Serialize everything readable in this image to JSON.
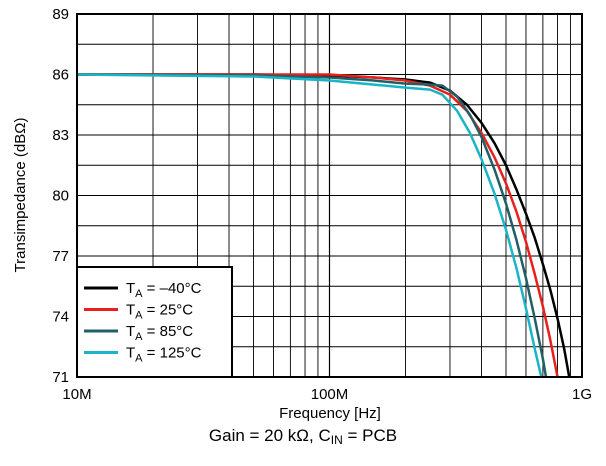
{
  "chart_data": {
    "type": "line",
    "xlabel": "Frequency [Hz]",
    "ylabel": "Transimpedance (dBΩ)",
    "xscale": "log",
    "xlim": [
      10000000,
      1000000000
    ],
    "ylim": [
      71,
      89
    ],
    "x_ticks": [
      {
        "value": 10000000,
        "label": "10M"
      },
      {
        "value": 100000000,
        "label": "100M"
      },
      {
        "value": 1000000000,
        "label": "1G"
      }
    ],
    "y_ticks": [
      71,
      74,
      77,
      80,
      83,
      86,
      89
    ],
    "grid": true,
    "legend_position": "bottom-left",
    "series": [
      {
        "name_main": "T",
        "name_sub": "A",
        "name_rest": " = –40°C",
        "color": "#000000",
        "points": [
          [
            10000000,
            86.0
          ],
          [
            50000000,
            86.0
          ],
          [
            100000000,
            85.95
          ],
          [
            150000000,
            85.85
          ],
          [
            200000000,
            85.75
          ],
          [
            250000000,
            85.6
          ],
          [
            300000000,
            85.2
          ],
          [
            350000000,
            84.5
          ],
          [
            400000000,
            83.6
          ],
          [
            450000000,
            82.6
          ],
          [
            500000000,
            81.5
          ],
          [
            550000000,
            80.3
          ],
          [
            600000000,
            79.1
          ],
          [
            650000000,
            77.9
          ],
          [
            700000000,
            76.6
          ],
          [
            750000000,
            75.3
          ],
          [
            800000000,
            73.9
          ],
          [
            850000000,
            72.4
          ],
          [
            890000000,
            71.0
          ]
        ]
      },
      {
        "name_main": "T",
        "name_sub": "A",
        "name_rest": " = 25°C",
        "color": "#e8201d",
        "points": [
          [
            10000000,
            86.0
          ],
          [
            50000000,
            86.0
          ],
          [
            100000000,
            86.0
          ],
          [
            150000000,
            85.85
          ],
          [
            200000000,
            85.7
          ],
          [
            250000000,
            85.45
          ],
          [
            300000000,
            85.0
          ],
          [
            350000000,
            84.2
          ],
          [
            400000000,
            83.1
          ],
          [
            450000000,
            81.9
          ],
          [
            500000000,
            80.6
          ],
          [
            550000000,
            79.2
          ],
          [
            600000000,
            77.7
          ],
          [
            650000000,
            76.1
          ],
          [
            700000000,
            74.5
          ],
          [
            750000000,
            72.8
          ],
          [
            800000000,
            71.0
          ]
        ]
      },
      {
        "name_main": "T",
        "name_sub": "A",
        "name_rest": " = 85°C",
        "color": "#1f5f66",
        "points": [
          [
            10000000,
            86.0
          ],
          [
            50000000,
            85.95
          ],
          [
            100000000,
            85.85
          ],
          [
            150000000,
            85.7
          ],
          [
            200000000,
            85.55
          ],
          [
            250000000,
            85.5
          ],
          [
            280000000,
            85.45
          ],
          [
            320000000,
            84.9
          ],
          [
            360000000,
            84.0
          ],
          [
            400000000,
            82.9
          ],
          [
            450000000,
            81.3
          ],
          [
            500000000,
            79.6
          ],
          [
            550000000,
            77.8
          ],
          [
            600000000,
            75.9
          ],
          [
            650000000,
            73.9
          ],
          [
            700000000,
            71.9
          ],
          [
            720000000,
            71.0
          ]
        ]
      },
      {
        "name_main": "T",
        "name_sub": "A",
        "name_rest": " = 125°C",
        "color": "#19b5c6",
        "points": [
          [
            10000000,
            86.0
          ],
          [
            50000000,
            85.9
          ],
          [
            100000000,
            85.7
          ],
          [
            150000000,
            85.5
          ],
          [
            200000000,
            85.35
          ],
          [
            250000000,
            85.25
          ],
          [
            280000000,
            85.0
          ],
          [
            320000000,
            84.2
          ],
          [
            360000000,
            83.1
          ],
          [
            400000000,
            81.8
          ],
          [
            450000000,
            80.1
          ],
          [
            500000000,
            78.3
          ],
          [
            550000000,
            76.4
          ],
          [
            600000000,
            74.4
          ],
          [
            650000000,
            72.4
          ],
          [
            690000000,
            71.0
          ]
        ]
      }
    ]
  },
  "caption": {
    "prefix": "Gain = 20 kΩ, C",
    "sub": "IN",
    "suffix": " = PCB"
  }
}
